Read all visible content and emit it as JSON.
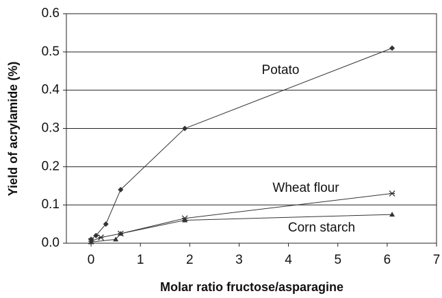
{
  "chart_data": {
    "type": "line",
    "x_label": "Molar ratio fructose/asparagine",
    "y_label": "Yield of acrylamide (%)",
    "xlim": [
      -0.5,
      7
    ],
    "xticks": [
      0,
      1,
      2,
      3,
      4,
      5,
      6,
      7
    ],
    "ylim": [
      0,
      0.6
    ],
    "yticks": [
      {
        "value": 0,
        "label": "0.0"
      },
      {
        "value": 0.1,
        "label": "0.1"
      },
      {
        "value": 0.2,
        "label": "0.2"
      },
      {
        "value": 0.3,
        "label": "0.3"
      },
      {
        "value": 0.4,
        "label": "0.4"
      },
      {
        "value": 0.5,
        "label": "0.5"
      },
      {
        "value": 0.6,
        "label": "0.6"
      }
    ],
    "grid": true,
    "series": [
      {
        "name": "Potato",
        "color": "#333333",
        "marker": "diamond",
        "x": [
          0,
          0.1,
          0.3,
          0.6,
          1.9,
          6.1
        ],
        "values": [
          0.01,
          0.02,
          0.05,
          0.14,
          0.3,
          0.51
        ]
      },
      {
        "name": "Wheat flour",
        "color": "#333333",
        "marker": "star",
        "x": [
          0,
          0.2,
          0.6,
          1.9,
          6.1
        ],
        "values": [
          0.005,
          0.015,
          0.025,
          0.065,
          0.13
        ]
      },
      {
        "name": "Corn starch",
        "color": "#333333",
        "marker": "triangle",
        "x": [
          0,
          0.5,
          0.6,
          1.9,
          6.1
        ],
        "values": [
          0.003,
          0.01,
          0.025,
          0.06,
          0.075
        ]
      }
    ]
  }
}
